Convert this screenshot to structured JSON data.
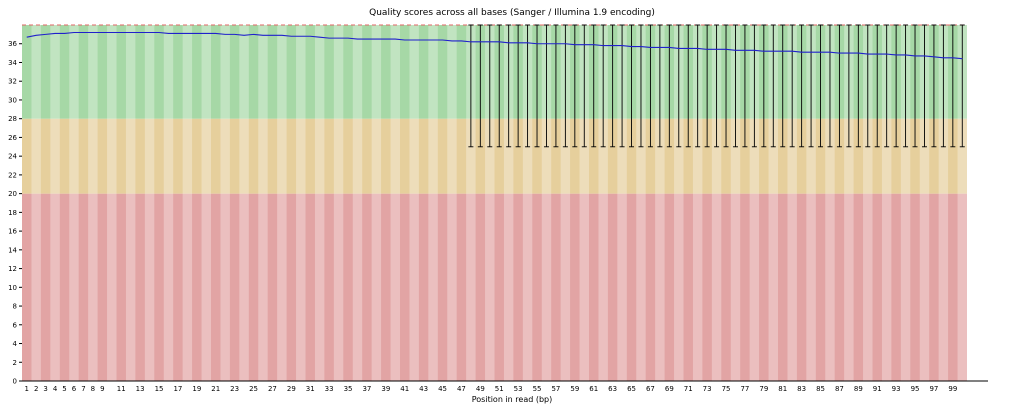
{
  "chart_data": {
    "type": "line-with-whiskers",
    "title": "Quality scores across all bases (Sanger / Illumina 1.9 encoding)",
    "xlabel": "Position in read (bp)",
    "ylim": [
      0,
      38
    ],
    "y_ticks": [
      0,
      2,
      4,
      6,
      8,
      10,
      12,
      14,
      16,
      18,
      20,
      22,
      24,
      26,
      28,
      30,
      32,
      34,
      36
    ],
    "x_tick_positions": [
      1,
      2,
      3,
      4,
      5,
      6,
      7,
      8,
      9,
      11,
      13,
      15,
      17,
      19,
      21,
      23,
      25,
      27,
      29,
      31,
      33,
      35,
      37,
      39,
      41,
      43,
      45,
      47,
      49,
      51,
      53,
      55,
      57,
      59,
      61,
      63,
      65,
      67,
      69,
      71,
      73,
      75,
      77,
      79,
      81,
      83,
      85,
      87,
      89,
      91,
      93,
      95,
      97,
      99
    ],
    "n_positions": 100,
    "zones": [
      {
        "name": "poor-quality-zone",
        "from": 0,
        "to": 20,
        "color": "#e2a4a4"
      },
      {
        "name": "medium-quality-zone",
        "from": 20,
        "to": 28,
        "color": "#e6cf9c"
      },
      {
        "name": "good-quality-zone",
        "from": 28,
        "to": 38,
        "color": "#a6d8a6"
      }
    ],
    "stripe_alpha": 0.3,
    "mean": [
      36.7,
      36.9,
      37.0,
      37.1,
      37.1,
      37.2,
      37.2,
      37.2,
      37.2,
      37.2,
      37.2,
      37.2,
      37.2,
      37.2,
      37.2,
      37.1,
      37.1,
      37.1,
      37.1,
      37.1,
      37.1,
      37.0,
      37.0,
      36.9,
      37.0,
      36.9,
      36.9,
      36.9,
      36.8,
      36.8,
      36.8,
      36.7,
      36.6,
      36.6,
      36.6,
      36.5,
      36.5,
      36.5,
      36.5,
      36.5,
      36.4,
      36.4,
      36.4,
      36.4,
      36.4,
      36.3,
      36.3,
      36.2,
      36.2,
      36.2,
      36.2,
      36.1,
      36.1,
      36.1,
      36.0,
      36.0,
      36.0,
      36.0,
      35.9,
      35.9,
      35.9,
      35.8,
      35.8,
      35.8,
      35.7,
      35.7,
      35.6,
      35.6,
      35.6,
      35.5,
      35.5,
      35.5,
      35.4,
      35.4,
      35.4,
      35.3,
      35.3,
      35.3,
      35.2,
      35.2,
      35.2,
      35.2,
      35.1,
      35.1,
      35.1,
      35.1,
      35.0,
      35.0,
      35.0,
      34.9,
      34.9,
      34.9,
      34.8,
      34.8,
      34.7,
      34.7,
      34.6,
      34.5,
      34.5,
      34.4
    ],
    "whiskers": {
      "start": 48,
      "low": 25,
      "high": 38,
      "color": "#000000"
    },
    "line_color": "#2020cc",
    "dashed_top_color": "#e06666",
    "axis_color": "#000000"
  }
}
